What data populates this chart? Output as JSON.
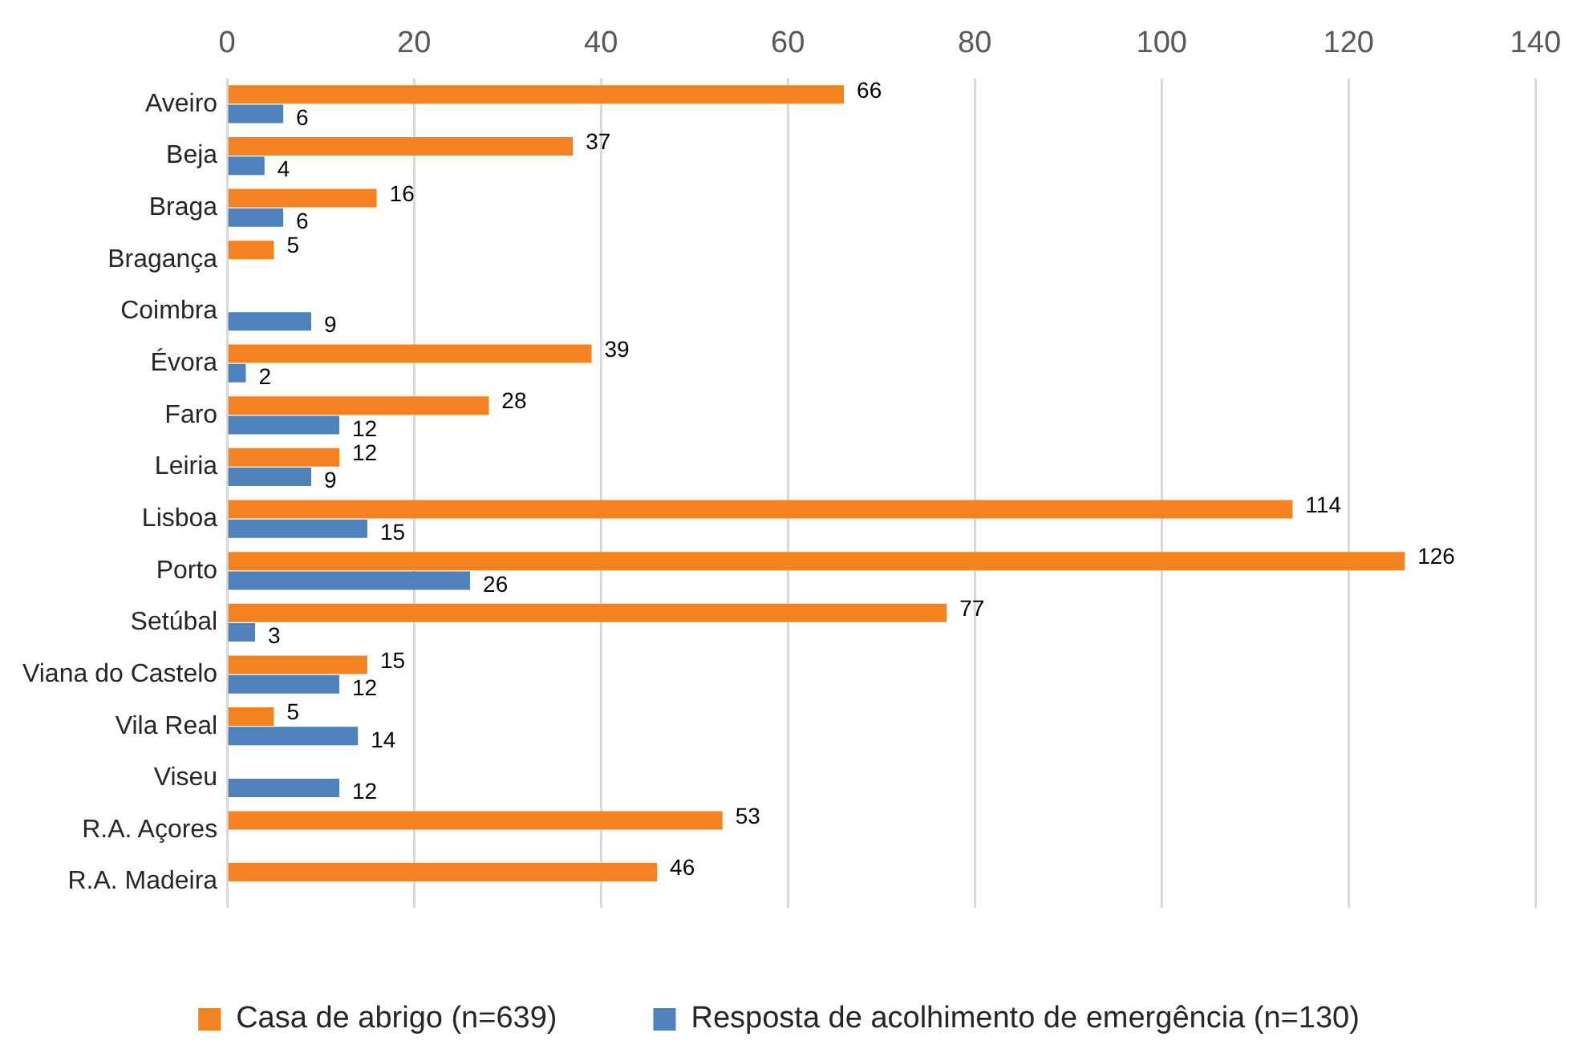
{
  "chart_data": {
    "type": "bar",
    "orientation": "horizontal",
    "categories": [
      "Aveiro",
      "Beja",
      "Braga",
      "Bragança",
      "Coimbra",
      "Évora",
      "Faro",
      "Leiria",
      "Lisboa",
      "Porto",
      "Setúbal",
      "Viana do Castelo",
      "Vila Real",
      "Viseu",
      "R.A. Açores",
      "R.A. Madeira"
    ],
    "series": [
      {
        "name": "Casa de abrigo (n=639)",
        "color": "#f58220",
        "values": [
          66,
          37,
          16,
          5,
          null,
          39,
          28,
          12,
          114,
          126,
          77,
          15,
          5,
          null,
          53,
          46
        ]
      },
      {
        "name": "Resposta de acolhimento de emergência (n=130)",
        "color": "#4f81bd",
        "values": [
          6,
          4,
          6,
          null,
          9,
          2,
          12,
          9,
          15,
          26,
          3,
          12,
          14,
          12,
          null,
          null
        ]
      }
    ],
    "xlim": [
      0,
      140
    ],
    "xticks": [
      0,
      20,
      40,
      60,
      80,
      100,
      120,
      140
    ],
    "grid": "x",
    "legend": "bottom",
    "data_labels": true
  }
}
